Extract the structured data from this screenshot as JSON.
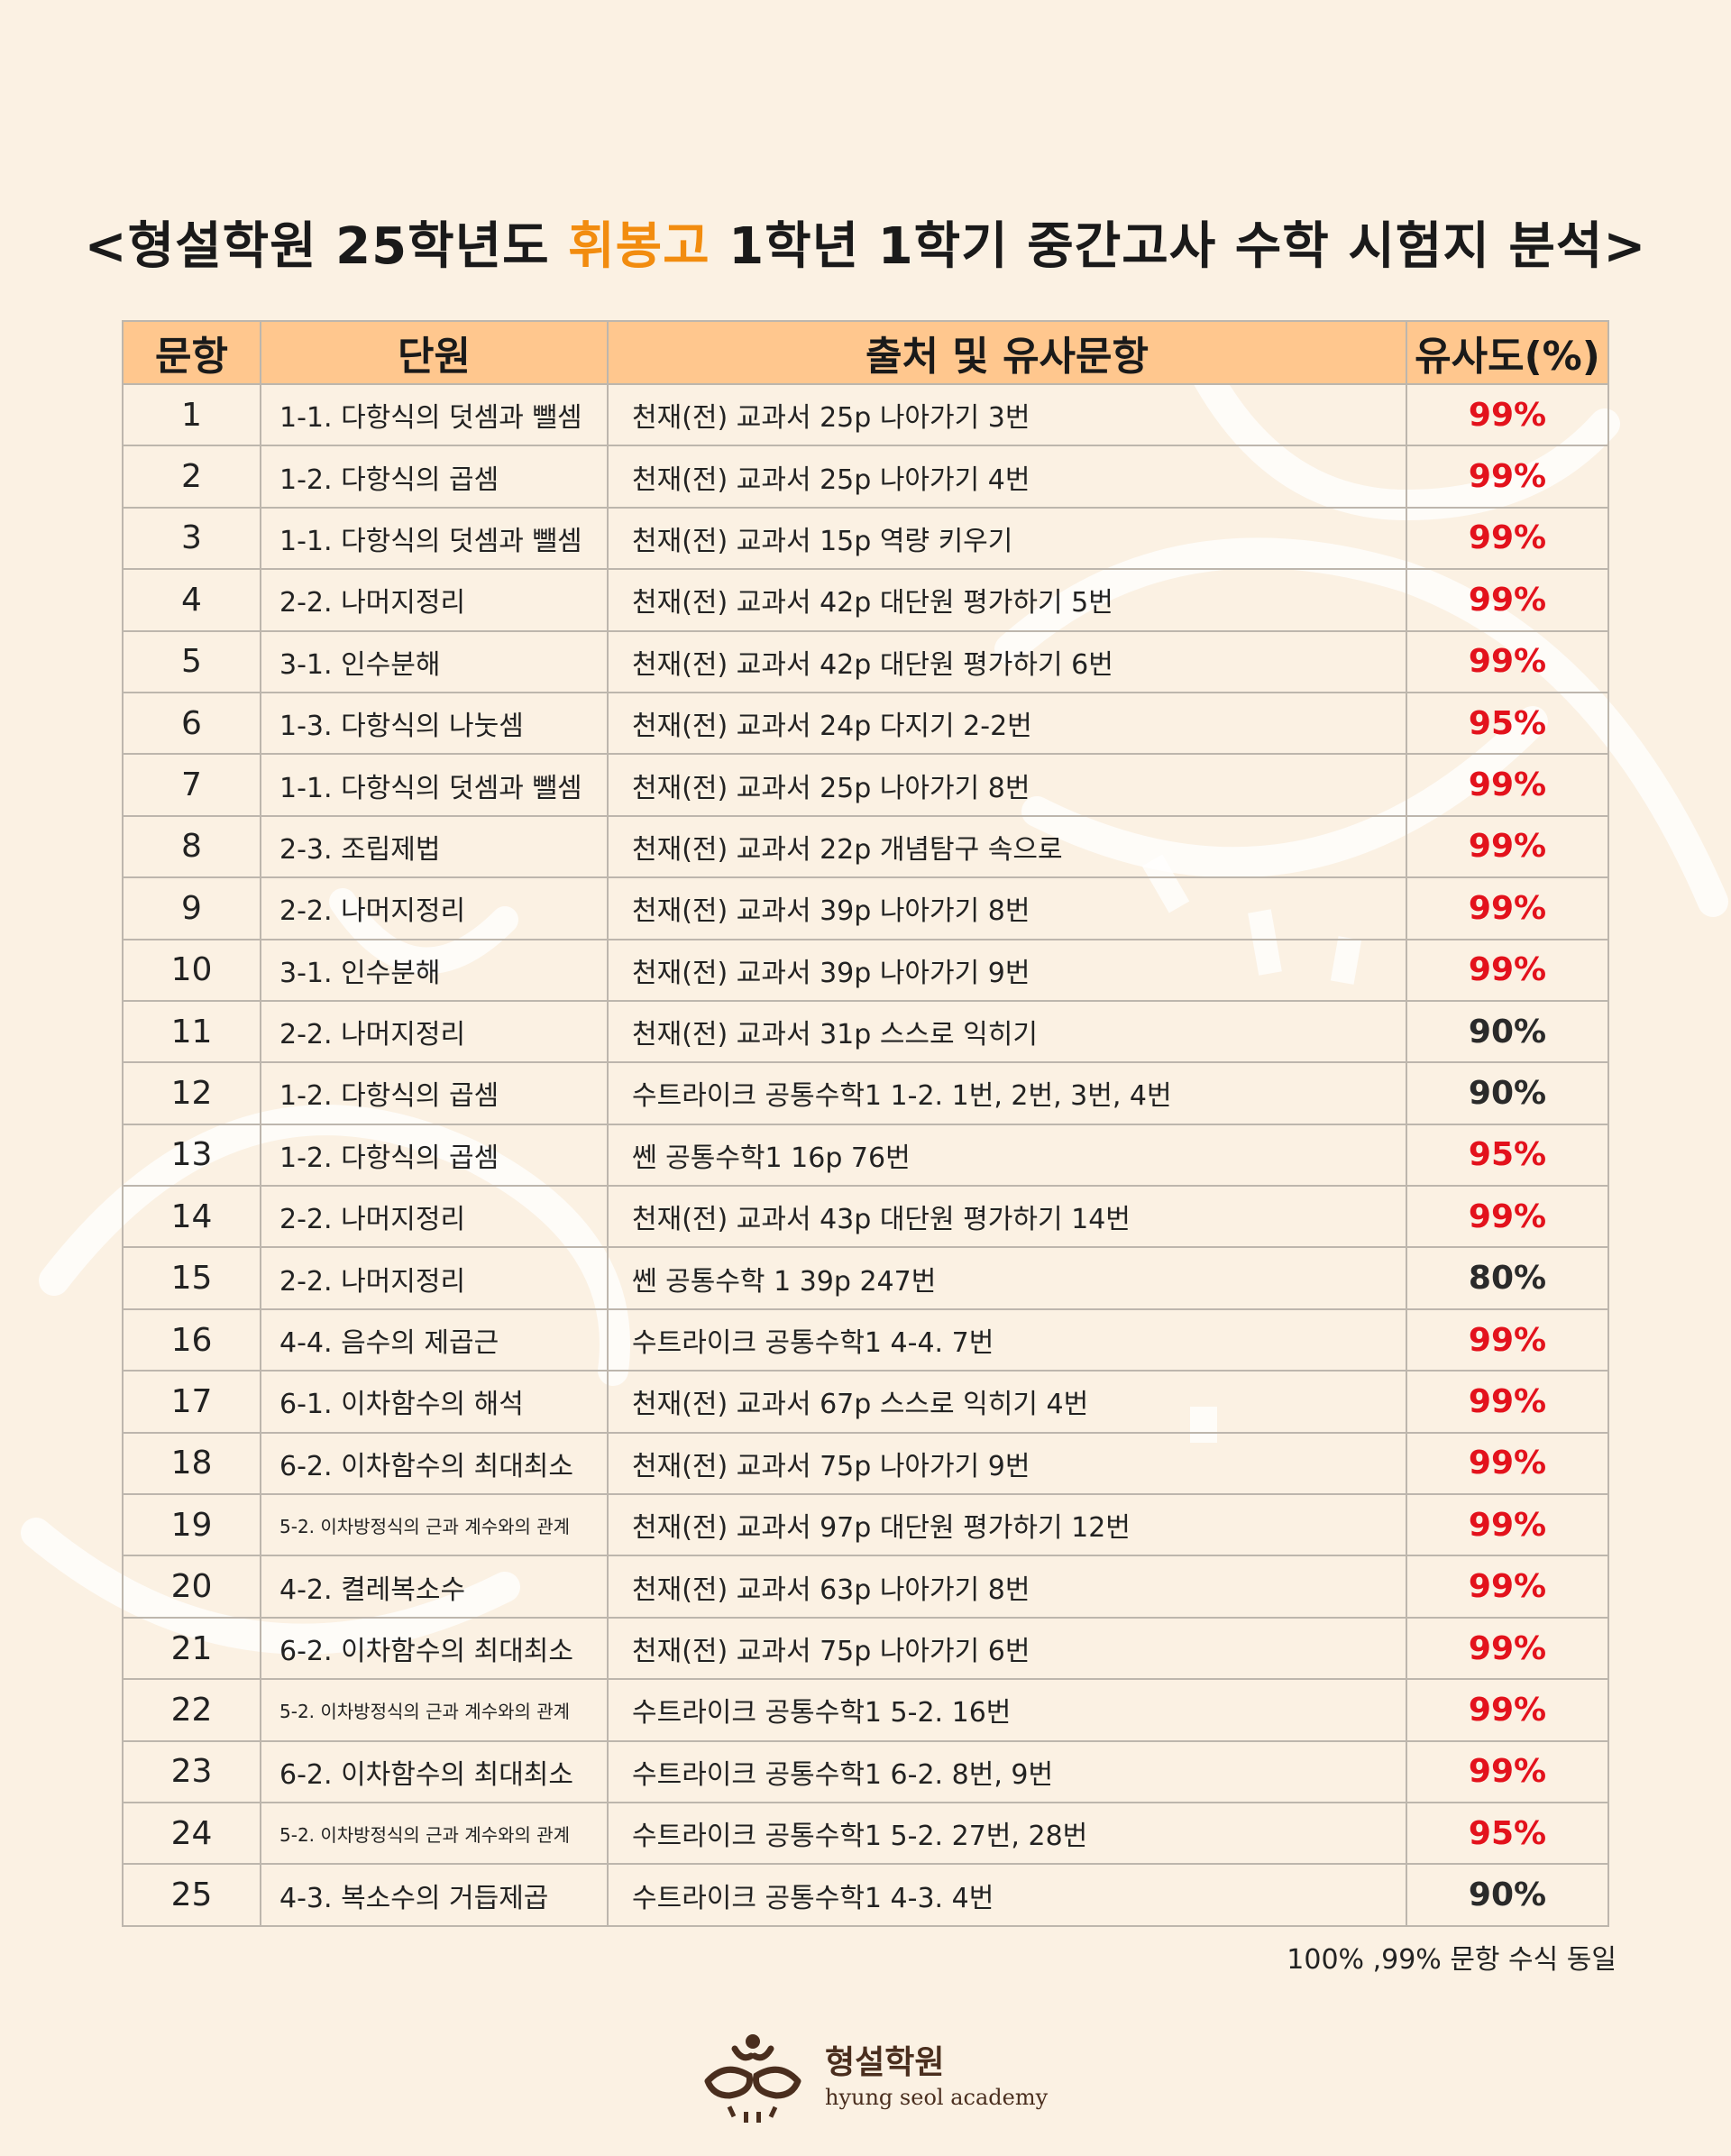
{
  "title": {
    "prefix": "<형설학원 25학년도 ",
    "school": "휘봉고",
    "suffix": " 1학년 1학기 중간고사 수학 시험지 분석>"
  },
  "colors": {
    "accent": "#f28c0f",
    "header_bg": "#ffc78e",
    "red": "#e3121c"
  },
  "table": {
    "headers": [
      "문항",
      "단원",
      "출처 및 유사문항",
      "유사도(%)"
    ],
    "rows": [
      {
        "no": "1",
        "unit": "1-1. 다항식의 덧셈과 뺄셈",
        "source": "천재(전) 교과서 25p 나아가기 3번",
        "similarity": "99%"
      },
      {
        "no": "2",
        "unit": "1-2. 다항식의 곱셈",
        "source": "천재(전) 교과서 25p 나아가기 4번",
        "similarity": "99%"
      },
      {
        "no": "3",
        "unit": "1-1. 다항식의 덧셈과 뺄셈",
        "source": "천재(전) 교과서 15p 역량 키우기",
        "similarity": "99%"
      },
      {
        "no": "4",
        "unit": "2-2. 나머지정리",
        "source": "천재(전) 교과서 42p 대단원 평가하기 5번",
        "similarity": "99%"
      },
      {
        "no": "5",
        "unit": "3-1. 인수분해",
        "source": "천재(전) 교과서 42p 대단원 평가하기 6번",
        "similarity": "99%"
      },
      {
        "no": "6",
        "unit": "1-3. 다항식의 나눗셈",
        "source": "천재(전) 교과서 24p 다지기 2-2번",
        "similarity": "95%"
      },
      {
        "no": "7",
        "unit": "1-1. 다항식의 덧셈과 뺄셈",
        "source": "천재(전) 교과서 25p 나아가기 8번",
        "similarity": "99%"
      },
      {
        "no": "8",
        "unit": "2-3. 조립제법",
        "source": "천재(전) 교과서 22p 개념탐구 속으로",
        "similarity": "99%"
      },
      {
        "no": "9",
        "unit": "2-2. 나머지정리",
        "source": "천재(전) 교과서 39p 나아가기 8번",
        "similarity": "99%"
      },
      {
        "no": "10",
        "unit": "3-1. 인수분해",
        "source": "천재(전) 교과서 39p 나아가기 9번",
        "similarity": "99%"
      },
      {
        "no": "11",
        "unit": "2-2. 나머지정리",
        "source": "천재(전) 교과서 31p 스스로 익히기",
        "similarity": "90%"
      },
      {
        "no": "12",
        "unit": "1-2. 다항식의 곱셈",
        "source": "수트라이크 공통수학1 1-2. 1번, 2번, 3번, 4번",
        "similarity": "90%"
      },
      {
        "no": "13",
        "unit": "1-2. 다항식의 곱셈",
        "source": "쎈 공통수학1 16p 76번",
        "similarity": "95%"
      },
      {
        "no": "14",
        "unit": "2-2. 나머지정리",
        "source": "천재(전) 교과서 43p 대단원 평가하기 14번",
        "similarity": "99%"
      },
      {
        "no": "15",
        "unit": "2-2. 나머지정리",
        "source": "쎈 공통수학 1 39p 247번",
        "similarity": "80%"
      },
      {
        "no": "16",
        "unit": "4-4. 음수의 제곱근",
        "source": "수트라이크 공통수학1 4-4. 7번",
        "similarity": "99%"
      },
      {
        "no": "17",
        "unit": "6-1. 이차함수의 해석",
        "source": "천재(전) 교과서 67p 스스로 익히기 4번",
        "similarity": "99%"
      },
      {
        "no": "18",
        "unit": "6-2. 이차함수의 최대최소",
        "source": "천재(전) 교과서 75p 나아가기 9번",
        "similarity": "99%"
      },
      {
        "no": "19",
        "unit": "5-2. 이차방정식의 근과 계수와의 관계",
        "source": "천재(전) 교과서 97p 대단원 평가하기 12번",
        "similarity": "99%"
      },
      {
        "no": "20",
        "unit": "4-2. 켤레복소수",
        "source": "천재(전) 교과서 63p 나아가기 8번",
        "similarity": "99%"
      },
      {
        "no": "21",
        "unit": "6-2. 이차함수의 최대최소",
        "source": "천재(전) 교과서 75p 나아가기 6번",
        "similarity": "99%"
      },
      {
        "no": "22",
        "unit": "5-2. 이차방정식의 근과 계수와의 관계",
        "source": "수트라이크 공통수학1 5-2. 16번",
        "similarity": "99%"
      },
      {
        "no": "23",
        "unit": "6-2. 이차함수의 최대최소",
        "source": "수트라이크 공통수학1 6-2. 8번, 9번",
        "similarity": "99%"
      },
      {
        "no": "24",
        "unit": "5-2. 이차방정식의 근과 계수와의 관계",
        "source": "수트라이크 공통수학1 5-2. 27번, 28번",
        "similarity": "95%"
      },
      {
        "no": "25",
        "unit": "4-3. 복소수의 거듭제곱",
        "source": "수트라이크 공통수학1 4-3. 4번",
        "similarity": "90%"
      }
    ]
  },
  "note": "100% ,99% 문항 수식 동일",
  "logo": {
    "name_ko": "형설학원",
    "name_en": "hyung seol academy",
    "icon": "academy-logo-icon"
  }
}
